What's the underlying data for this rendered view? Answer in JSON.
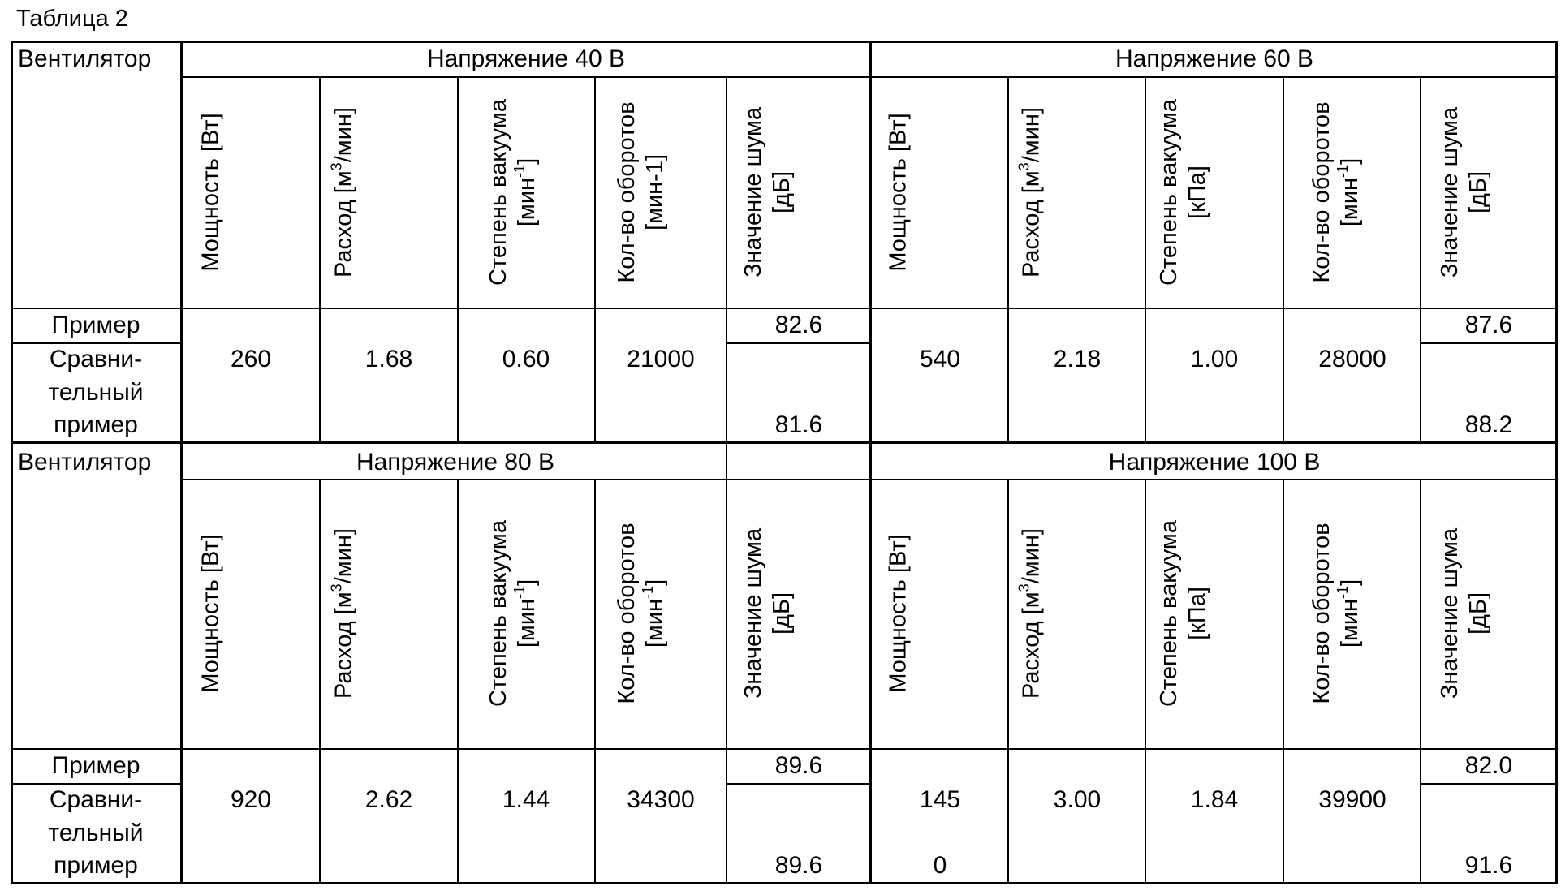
{
  "caption": "Таблица 2",
  "fan_label": "Вентилятор",
  "row_labels": {
    "example": "Пример",
    "comparative_1": "Сравни-",
    "comparative_2": "тельный",
    "comparative_3": "пример"
  },
  "col_headers_block1": {
    "power": "Мощность [Вт]",
    "flow_prefix": "Расход [м",
    "flow_sup": "3",
    "flow_suffix": "/мин]",
    "vacuum_top": "Степень вакуума",
    "vacuum_unit_prefix": "[мин",
    "vacuum_unit_sup": "-1",
    "vacuum_unit_suffix": "]",
    "rpm_top": "Кол-во оборотов",
    "rpm_unit": "[мин-1]",
    "noise_top": "Значение шума",
    "noise_unit": "[дБ]"
  },
  "col_headers_standard": {
    "power": "Мощность [Вт]",
    "flow_prefix": "Расход [м",
    "flow_sup": "3",
    "flow_suffix": "/мин]",
    "vacuum_top": "Степень вакуума",
    "vacuum_unit": "[кПа]",
    "rpm_top": "Кол-во оборотов",
    "rpm_unit_prefix": "[мин",
    "rpm_unit_sup": "-1",
    "rpm_unit_suffix": "]",
    "noise_top": "Значение шума",
    "noise_unit": "[дБ]"
  },
  "col_headers_block3": {
    "power": "Мощность [Вт]",
    "flow_prefix": "Расход [м",
    "flow_sup": "3",
    "flow_suffix": "/мин]",
    "vacuum_top": "Степень вакуума",
    "vacuum_unit_prefix": "[мин",
    "vacuum_unit_sup": "-1",
    "vacuum_unit_suffix": "]",
    "rpm_top": "Кол-во оборотов",
    "rpm_unit_prefix": "[мин",
    "rpm_unit_sup": "-1",
    "rpm_unit_suffix": "]",
    "noise_top": "Значение шума",
    "noise_unit": "[дБ]"
  },
  "blocks": [
    {
      "voltage": "Напряжение 40 В",
      "power": "260",
      "flow": "1.68",
      "vacuum": "0.60",
      "rpm": "21000",
      "noise_example": "82.6",
      "noise_comparative": "81.6"
    },
    {
      "voltage": "Напряжение 60 В",
      "power": "540",
      "flow": "2.18",
      "vacuum": "1.00",
      "rpm": "28000",
      "noise_example": "87.6",
      "noise_comparative": "88.2"
    },
    {
      "voltage": "Напряжение 80 В",
      "power": "920",
      "flow": "2.62",
      "vacuum": "1.44",
      "rpm": "34300",
      "noise_example": "89.6",
      "noise_comparative": "89.6"
    },
    {
      "voltage": "Напряжение 100 В",
      "power": "145",
      "power_line2": "0",
      "flow": "3.00",
      "vacuum": "1.84",
      "rpm": "39900",
      "noise_example": "82.0",
      "noise_comparative": "91.6"
    }
  ]
}
